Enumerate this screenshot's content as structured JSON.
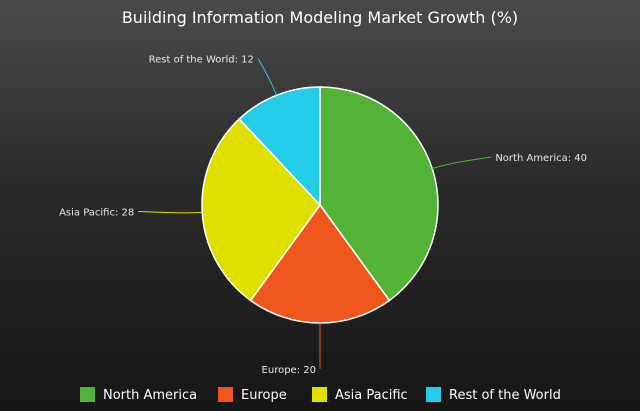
{
  "chart_data": {
    "type": "pie",
    "title": "Building Information Modeling Market Growth (%)",
    "categories": [
      "North America",
      "Europe",
      "Asia Pacific",
      "Rest of the World"
    ],
    "values": [
      40,
      20,
      28,
      12
    ],
    "colors": [
      "#52b336",
      "#ee561c",
      "#dfe000",
      "#23cde7"
    ],
    "data_labels": [
      "North America: 40",
      "Europe: 20",
      "Asia Pacific: 28",
      "Rest of the World: 12"
    ],
    "legend_position": "bottom"
  }
}
